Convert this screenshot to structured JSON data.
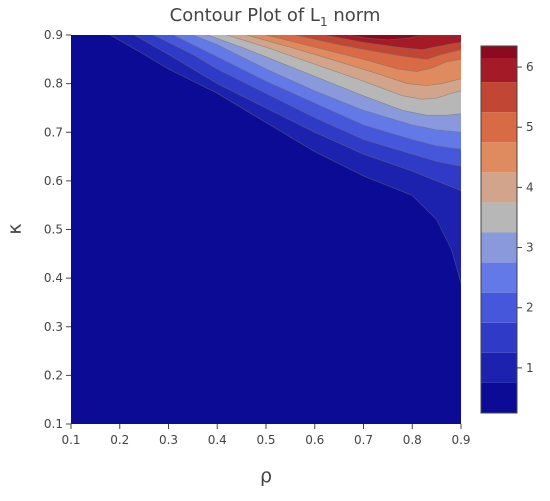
{
  "chart_data": {
    "type": "contour",
    "title": "Contour Plot of L",
    "title_subscript": "1",
    "title_suffix": " norm",
    "xlabel": "ρ",
    "ylabel": "κ",
    "xlim": [
      0.1,
      0.9
    ],
    "ylim": [
      0.1,
      0.9
    ],
    "x_ticks": [
      "0.1",
      "0.2",
      "0.3",
      "0.4",
      "0.5",
      "0.6",
      "0.7",
      "0.8",
      "0.9"
    ],
    "y_ticks": [
      "0.1",
      "0.2",
      "0.3",
      "0.4",
      "0.5",
      "0.6",
      "0.7",
      "0.8",
      "0.9"
    ],
    "colorbar": {
      "min": 0.25,
      "max": 6.35,
      "ticks": [
        "1",
        "2",
        "3",
        "4",
        "5",
        "6"
      ],
      "tick_values": [
        1,
        2,
        3,
        4,
        5,
        6
      ],
      "placement": "right"
    },
    "levels": [
      {
        "min": 0.25,
        "max": 0.75,
        "color": "#0c0b96"
      },
      {
        "min": 0.75,
        "max": 1.25,
        "color": "#1c22ad"
      },
      {
        "min": 1.25,
        "max": 1.75,
        "color": "#2f3bc6"
      },
      {
        "min": 1.75,
        "max": 2.25,
        "color": "#4757dc"
      },
      {
        "min": 2.25,
        "max": 2.75,
        "color": "#6479e8"
      },
      {
        "min": 2.75,
        "max": 3.25,
        "color": "#8a99dc"
      },
      {
        "min": 3.25,
        "max": 3.75,
        "color": "#b7b7b7"
      },
      {
        "min": 3.75,
        "max": 4.25,
        "color": "#d2a48b"
      },
      {
        "min": 4.25,
        "max": 4.75,
        "color": "#e08b5f"
      },
      {
        "min": 4.75,
        "max": 5.25,
        "color": "#d86a45"
      },
      {
        "min": 5.25,
        "max": 5.75,
        "color": "#c24634"
      },
      {
        "min": 5.75,
        "max": 6.35,
        "color": "#a41a26"
      },
      {
        "min": 6.15,
        "max": 6.35,
        "color": "#8c0a20"
      }
    ],
    "contour_boundaries": [
      {
        "level": 0.75,
        "points": [
          [
            0.18,
            0.9
          ],
          [
            0.25,
            0.86
          ],
          [
            0.3,
            0.83
          ],
          [
            0.4,
            0.78
          ],
          [
            0.5,
            0.72
          ],
          [
            0.6,
            0.66
          ],
          [
            0.7,
            0.61
          ],
          [
            0.8,
            0.57
          ],
          [
            0.85,
            0.52
          ],
          [
            0.88,
            0.46
          ],
          [
            0.9,
            0.39
          ]
        ]
      },
      {
        "level": 1.25,
        "points": [
          [
            0.23,
            0.9
          ],
          [
            0.3,
            0.86
          ],
          [
            0.4,
            0.8
          ],
          [
            0.5,
            0.75
          ],
          [
            0.6,
            0.7
          ],
          [
            0.7,
            0.655
          ],
          [
            0.8,
            0.62
          ],
          [
            0.85,
            0.6
          ],
          [
            0.9,
            0.58
          ]
        ]
      },
      {
        "level": 1.75,
        "points": [
          [
            0.27,
            0.9
          ],
          [
            0.35,
            0.86
          ],
          [
            0.4,
            0.83
          ],
          [
            0.5,
            0.78
          ],
          [
            0.6,
            0.73
          ],
          [
            0.7,
            0.685
          ],
          [
            0.8,
            0.655
          ],
          [
            0.85,
            0.64
          ],
          [
            0.9,
            0.63
          ]
        ]
      },
      {
        "level": 2.25,
        "points": [
          [
            0.31,
            0.9
          ],
          [
            0.4,
            0.855
          ],
          [
            0.5,
            0.805
          ],
          [
            0.6,
            0.76
          ],
          [
            0.7,
            0.715
          ],
          [
            0.8,
            0.685
          ],
          [
            0.85,
            0.672
          ],
          [
            0.9,
            0.665
          ]
        ]
      },
      {
        "level": 2.75,
        "points": [
          [
            0.35,
            0.9
          ],
          [
            0.4,
            0.88
          ],
          [
            0.5,
            0.83
          ],
          [
            0.6,
            0.785
          ],
          [
            0.7,
            0.745
          ],
          [
            0.8,
            0.715
          ],
          [
            0.85,
            0.705
          ],
          [
            0.9,
            0.7
          ]
        ]
      },
      {
        "level": 3.25,
        "points": [
          [
            0.38,
            0.9
          ],
          [
            0.45,
            0.875
          ],
          [
            0.5,
            0.855
          ],
          [
            0.6,
            0.815
          ],
          [
            0.7,
            0.775
          ],
          [
            0.78,
            0.745
          ],
          [
            0.83,
            0.735
          ],
          [
            0.87,
            0.735
          ],
          [
            0.9,
            0.738
          ]
        ]
      },
      {
        "level": 3.75,
        "points": [
          [
            0.42,
            0.9
          ],
          [
            0.5,
            0.875
          ],
          [
            0.6,
            0.84
          ],
          [
            0.7,
            0.805
          ],
          [
            0.78,
            0.775
          ],
          [
            0.82,
            0.768
          ],
          [
            0.85,
            0.77
          ],
          [
            0.88,
            0.78
          ],
          [
            0.9,
            0.785
          ]
        ]
      },
      {
        "level": 4.25,
        "points": [
          [
            0.46,
            0.9
          ],
          [
            0.55,
            0.875
          ],
          [
            0.65,
            0.845
          ],
          [
            0.73,
            0.82
          ],
          [
            0.79,
            0.8
          ],
          [
            0.83,
            0.796
          ],
          [
            0.86,
            0.8
          ],
          [
            0.9,
            0.81
          ]
        ]
      },
      {
        "level": 4.75,
        "points": [
          [
            0.5,
            0.9
          ],
          [
            0.6,
            0.875
          ],
          [
            0.7,
            0.85
          ],
          [
            0.77,
            0.83
          ],
          [
            0.81,
            0.825
          ],
          [
            0.84,
            0.832
          ],
          [
            0.87,
            0.845
          ],
          [
            0.9,
            0.85
          ]
        ]
      },
      {
        "level": 5.25,
        "points": [
          [
            0.56,
            0.9
          ],
          [
            0.65,
            0.88
          ],
          [
            0.73,
            0.865
          ],
          [
            0.79,
            0.855
          ],
          [
            0.83,
            0.85
          ],
          [
            0.86,
            0.86
          ],
          [
            0.9,
            0.87
          ]
        ]
      },
      {
        "level": 5.75,
        "points": [
          [
            0.62,
            0.9
          ],
          [
            0.7,
            0.885
          ],
          [
            0.77,
            0.875
          ],
          [
            0.82,
            0.87
          ],
          [
            0.85,
            0.876
          ],
          [
            0.88,
            0.882
          ],
          [
            0.9,
            0.885
          ]
        ]
      },
      {
        "level": 6.15,
        "points": [
          [
            0.67,
            0.9
          ],
          [
            0.71,
            0.893
          ],
          [
            0.75,
            0.89
          ],
          [
            0.79,
            0.893
          ],
          [
            0.82,
            0.9
          ]
        ]
      }
    ],
    "grid": true,
    "legend": "none"
  }
}
